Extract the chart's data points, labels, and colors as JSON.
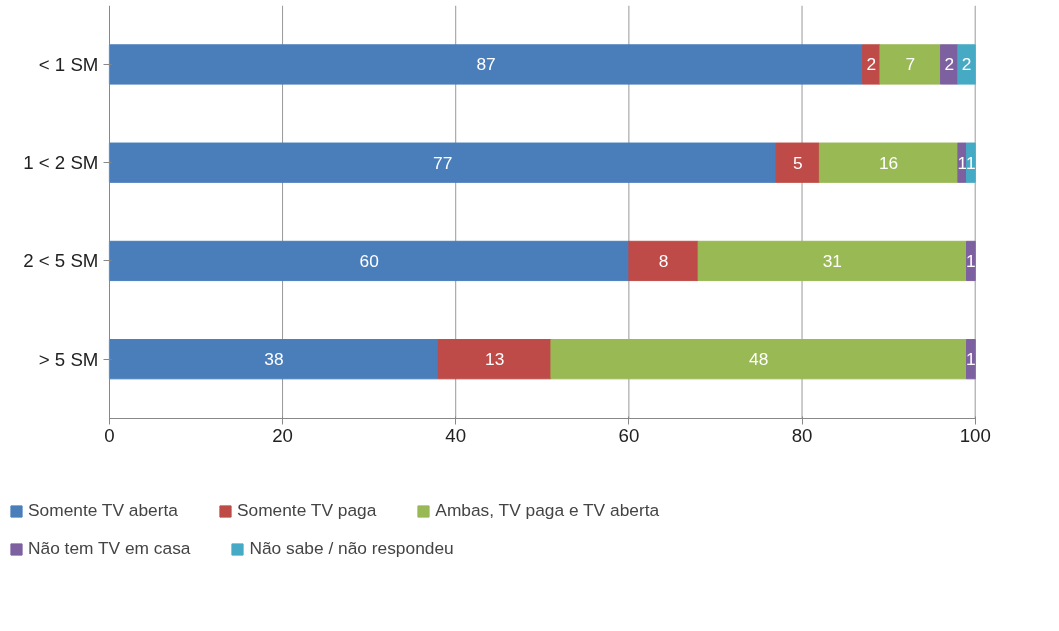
{
  "chart_data": {
    "type": "bar",
    "orientation": "horizontal",
    "stacked": true,
    "categories": [
      "< 1 SM",
      "1 < 2 SM",
      "2 < 5 SM",
      "> 5 SM"
    ],
    "series": [
      {
        "name": "Somente TV aberta",
        "color": "#4a7ebb",
        "values": [
          87,
          77,
          60,
          38
        ]
      },
      {
        "name": "Somente TV paga",
        "color": "#be4b48",
        "values": [
          2,
          5,
          8,
          13
        ]
      },
      {
        "name": "Ambas, TV paga e TV aberta",
        "color": "#98b954",
        "values": [
          7,
          16,
          31,
          48
        ]
      },
      {
        "name": "Não tem TV em casa",
        "color": "#7d60a0",
        "values": [
          2,
          1,
          1,
          1
        ]
      },
      {
        "name": "Não sabe / não respondeu",
        "color": "#46aac5",
        "values": [
          2,
          1,
          null,
          null
        ]
      }
    ],
    "xlim": [
      0,
      100
    ],
    "xticks": [
      0,
      20,
      40,
      60,
      80,
      100
    ],
    "grid": "x",
    "legend": "bottom",
    "data_labels": true
  }
}
